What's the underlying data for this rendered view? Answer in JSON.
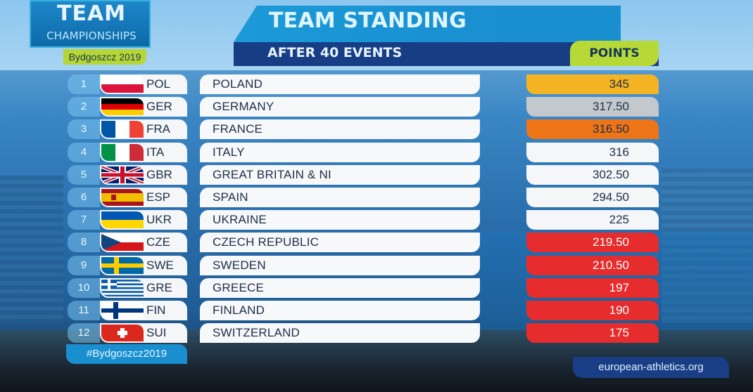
{
  "logo": {
    "line1": "TEAM",
    "line2": "CHAMPIONSHIPS",
    "line3": "Bydgoszcz 2019"
  },
  "header": {
    "title": "TEAM STANDING",
    "subtitle": "AFTER 40 EVENTS",
    "points_label": "POINTS"
  },
  "colors": {
    "gold": "#f4b322",
    "silver": "#c3c8cd",
    "bronze": "#ee7418",
    "white": "#f4f6f8",
    "relegation": "#e62c2c",
    "accent_green": "#b7d937",
    "header_blue": "#1a8fd0",
    "header_dark": "#173d84"
  },
  "standings": [
    {
      "rank": "1",
      "code": "POL",
      "name": "POLAND",
      "points": "345",
      "flag_icon": "poland-flag-icon"
    },
    {
      "rank": "2",
      "code": "GER",
      "name": "GERMANY",
      "points": "317.50",
      "flag_icon": "germany-flag-icon"
    },
    {
      "rank": "3",
      "code": "FRA",
      "name": "FRANCE",
      "points": "316.50",
      "flag_icon": "france-flag-icon"
    },
    {
      "rank": "4",
      "code": "ITA",
      "name": "ITALY",
      "points": "316",
      "flag_icon": "italy-flag-icon"
    },
    {
      "rank": "5",
      "code": "GBR",
      "name": "GREAT BRITAIN & NI",
      "points": "302.50",
      "flag_icon": "great-britain-flag-icon"
    },
    {
      "rank": "6",
      "code": "ESP",
      "name": "SPAIN",
      "points": "294.50",
      "flag_icon": "spain-flag-icon"
    },
    {
      "rank": "7",
      "code": "UKR",
      "name": "UKRAINE",
      "points": "225",
      "flag_icon": "ukraine-flag-icon"
    },
    {
      "rank": "8",
      "code": "CZE",
      "name": "CZECH REPUBLIC",
      "points": "219.50",
      "flag_icon": "czech-flag-icon"
    },
    {
      "rank": "9",
      "code": "SWE",
      "name": "SWEDEN",
      "points": "210.50",
      "flag_icon": "sweden-flag-icon"
    },
    {
      "rank": "10",
      "code": "GRE",
      "name": "GREECE",
      "points": "197",
      "flag_icon": "greece-flag-icon"
    },
    {
      "rank": "11",
      "code": "FIN",
      "name": "FINLAND",
      "points": "190",
      "flag_icon": "finland-flag-icon"
    },
    {
      "rank": "12",
      "code": "SUI",
      "name": "SWITZERLAND",
      "points": "175",
      "flag_icon": "switzerland-flag-icon"
    }
  ],
  "footer": {
    "hashtag": "#Bydgoszcz2019",
    "website": "european-athletics.org"
  }
}
